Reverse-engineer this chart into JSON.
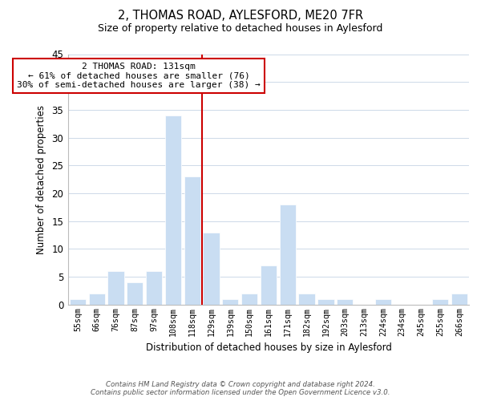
{
  "title": "2, THOMAS ROAD, AYLESFORD, ME20 7FR",
  "subtitle": "Size of property relative to detached houses in Aylesford",
  "xlabel": "Distribution of detached houses by size in Aylesford",
  "ylabel": "Number of detached properties",
  "bar_labels": [
    "55sqm",
    "66sqm",
    "76sqm",
    "87sqm",
    "97sqm",
    "108sqm",
    "118sqm",
    "129sqm",
    "139sqm",
    "150sqm",
    "161sqm",
    "171sqm",
    "182sqm",
    "192sqm",
    "203sqm",
    "213sqm",
    "224sqm",
    "234sqm",
    "245sqm",
    "255sqm",
    "266sqm"
  ],
  "bar_values": [
    1,
    2,
    6,
    4,
    6,
    34,
    23,
    13,
    1,
    2,
    7,
    18,
    2,
    1,
    1,
    0,
    1,
    0,
    0,
    1,
    2
  ],
  "bar_color": "#c9ddf2",
  "bar_edge_color": "#ffffff",
  "vline_color": "#cc0000",
  "vline_x": 6.5,
  "annotation_title": "2 THOMAS ROAD: 131sqm",
  "annotation_line1": "← 61% of detached houses are smaller (76)",
  "annotation_line2": "30% of semi-detached houses are larger (38) →",
  "annotation_box_color": "#ffffff",
  "annotation_box_edge": "#cc0000",
  "ylim": [
    0,
    45
  ],
  "yticks": [
    0,
    5,
    10,
    15,
    20,
    25,
    30,
    35,
    40,
    45
  ],
  "footer_line1": "Contains HM Land Registry data © Crown copyright and database right 2024.",
  "footer_line2": "Contains public sector information licensed under the Open Government Licence v3.0.",
  "bg_color": "#ffffff",
  "grid_color": "#cdd9e8"
}
